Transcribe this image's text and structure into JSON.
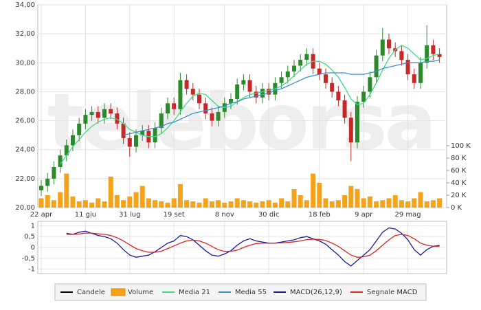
{
  "chart_data": {
    "type": "candlestick",
    "watermark": "teleborsa",
    "categories": [
      "22 apr",
      null,
      null,
      null,
      null,
      null,
      null,
      "11 giu",
      null,
      null,
      null,
      null,
      null,
      null,
      "31 lug",
      null,
      null,
      null,
      null,
      null,
      null,
      "19 set",
      null,
      null,
      null,
      null,
      null,
      null,
      null,
      "8 nov",
      null,
      null,
      null,
      null,
      null,
      null,
      "30 dic",
      null,
      null,
      null,
      null,
      null,
      null,
      null,
      "18 feb",
      null,
      null,
      null,
      null,
      null,
      null,
      "9 apr",
      null,
      null,
      null,
      null,
      null,
      null,
      "29 mag",
      null,
      null,
      null,
      null,
      null
    ],
    "ylim": [
      20,
      34
    ],
    "yticks": [
      {
        "value": 20,
        "label": "20,00"
      },
      {
        "value": 22,
        "label": "22,00"
      },
      {
        "value": 24,
        "label": "24,00"
      },
      {
        "value": 26,
        "label": "26,00"
      },
      {
        "value": 28,
        "label": "28,00"
      },
      {
        "value": 30,
        "label": "30,00"
      },
      {
        "value": 32,
        "label": "32,00"
      },
      {
        "value": 34,
        "label": "34,00"
      }
    ],
    "y2lim": [
      0,
      100
    ],
    "y2ticks": [
      {
        "value": 0,
        "label": "0 K"
      },
      {
        "value": 20,
        "label": "20 K"
      },
      {
        "value": 40,
        "label": "40 K"
      },
      {
        "value": 60,
        "label": "60 K"
      },
      {
        "value": 80,
        "label": "80 K"
      },
      {
        "value": 100,
        "label": "100 K"
      }
    ],
    "macd_ylim": [
      -1.2,
      1.2
    ],
    "macd_ticks": [
      1,
      {
        "value": 0.5,
        "label": "0,5"
      },
      0,
      {
        "value": -0.5,
        "label": "-0,5"
      },
      -1
    ],
    "grid": true,
    "series": [
      {
        "name": "Candele",
        "color": "#000000",
        "up_color": "#2b8a2b",
        "down_color": "#c62828",
        "open": [
          21.2,
          21.5,
          22.0,
          22.8,
          23.6,
          24.3,
          25.0,
          25.8,
          26.4,
          26.6,
          26.2,
          26.8,
          26.5,
          25.8,
          24.8,
          24.2,
          25.0,
          25.3,
          24.5,
          25.5,
          26.5,
          27.2,
          26.8,
          28.8,
          28.2,
          27.8,
          27.2,
          26.5,
          26.0,
          26.6,
          27.2,
          27.5,
          28.5,
          28.8,
          28.0,
          27.6,
          28.2,
          27.8,
          28.6,
          29.0,
          29.4,
          29.8,
          30.2,
          30.6,
          29.6,
          29.2,
          28.6,
          28.0,
          27.4,
          26.2,
          24.5,
          27.3,
          28.0,
          29.0,
          30.5,
          31.6,
          31.0,
          30.8,
          30.2,
          29.2,
          28.6,
          30.0,
          31.2,
          30.6
        ],
        "high": [
          21.9,
          22.4,
          23.2,
          24.0,
          24.7,
          25.4,
          26.2,
          26.8,
          27.0,
          27.0,
          27.2,
          27.2,
          26.9,
          26.2,
          25.2,
          25.4,
          25.7,
          25.7,
          25.9,
          26.9,
          27.6,
          27.6,
          29.3,
          29.2,
          28.6,
          28.2,
          27.6,
          26.9,
          27.0,
          27.6,
          27.9,
          28.9,
          29.2,
          29.2,
          28.4,
          28.6,
          28.6,
          29.0,
          29.4,
          29.8,
          30.2,
          30.6,
          31.0,
          31.0,
          30.0,
          29.6,
          29.0,
          28.4,
          27.8,
          26.6,
          27.7,
          28.4,
          29.4,
          30.9,
          32.4,
          32.0,
          31.4,
          31.2,
          30.6,
          29.6,
          30.4,
          32.6,
          31.6,
          31.0
        ],
        "low": [
          20.8,
          21.1,
          21.6,
          22.4,
          23.2,
          23.9,
          24.6,
          25.4,
          26.0,
          25.8,
          25.8,
          26.1,
          25.4,
          24.4,
          23.5,
          23.8,
          24.6,
          24.1,
          24.1,
          25.1,
          26.1,
          26.4,
          26.4,
          27.8,
          27.4,
          26.8,
          26.1,
          25.6,
          25.6,
          26.2,
          26.8,
          27.1,
          28.1,
          27.6,
          27.2,
          27.2,
          27.4,
          27.4,
          28.2,
          28.6,
          29.0,
          29.4,
          29.8,
          29.2,
          28.8,
          28.2,
          27.6,
          27.0,
          25.8,
          23.2,
          24.1,
          26.9,
          27.6,
          28.6,
          30.1,
          30.6,
          30.4,
          29.8,
          28.8,
          28.2,
          28.2,
          29.6,
          30.2,
          30.0
        ],
        "close": [
          21.5,
          22.0,
          22.8,
          23.6,
          24.3,
          25.0,
          25.8,
          26.4,
          26.6,
          26.2,
          26.8,
          26.5,
          25.8,
          24.8,
          24.2,
          25.0,
          25.3,
          24.5,
          25.5,
          26.5,
          27.2,
          26.8,
          28.8,
          28.2,
          27.8,
          27.2,
          26.5,
          26.0,
          26.6,
          27.2,
          27.5,
          28.5,
          28.8,
          28.0,
          27.6,
          28.2,
          27.8,
          28.6,
          29.0,
          29.4,
          29.8,
          30.2,
          30.6,
          29.6,
          29.2,
          28.6,
          28.0,
          27.4,
          26.2,
          24.5,
          27.3,
          28.0,
          29.0,
          30.5,
          31.6,
          31.0,
          30.8,
          30.2,
          29.2,
          28.6,
          30.0,
          31.2,
          30.6,
          30.4
        ]
      },
      {
        "name": "Volume",
        "color": "#f5a31a",
        "axis": "y2",
        "values": [
          15,
          20,
          12,
          25,
          55,
          18,
          10,
          12,
          8,
          15,
          10,
          50,
          20,
          12,
          18,
          25,
          35,
          15,
          12,
          10,
          8,
          15,
          38,
          12,
          10,
          8,
          15,
          10,
          12,
          8,
          10,
          15,
          12,
          10,
          8,
          10,
          12,
          8,
          15,
          10,
          30,
          20,
          12,
          55,
          40,
          15,
          10,
          12,
          20,
          35,
          30,
          15,
          18,
          10,
          12,
          15,
          20,
          12,
          10,
          15,
          25,
          10,
          12,
          15
        ]
      },
      {
        "name": "Media 21",
        "color": "#3ddc84",
        "values": [
          null,
          null,
          null,
          23.0,
          23.6,
          24.2,
          24.7,
          25.2,
          25.6,
          25.9,
          26.1,
          26.2,
          26.1,
          25.8,
          25.4,
          25.2,
          25.0,
          24.9,
          24.9,
          25.1,
          25.5,
          26.0,
          26.6,
          27.2,
          27.7,
          27.9,
          27.8,
          27.4,
          27.0,
          26.9,
          27.0,
          27.3,
          27.6,
          27.8,
          27.9,
          28.0,
          28.1,
          28.2,
          28.4,
          28.7,
          29.1,
          29.5,
          29.9,
          30.1,
          30.1,
          29.9,
          29.5,
          29.0,
          28.3,
          27.5,
          27.1,
          27.2,
          27.8,
          28.6,
          29.5,
          30.3,
          30.9,
          31.2,
          31.0,
          30.6,
          30.2,
          30.3,
          30.5,
          30.6
        ]
      },
      {
        "name": "Media 55",
        "color": "#3a8fd8",
        "values": [
          null,
          null,
          null,
          null,
          null,
          null,
          null,
          null,
          null,
          null,
          null,
          null,
          null,
          25.0,
          25.1,
          25.2,
          25.3,
          25.4,
          25.5,
          25.6,
          25.8,
          25.9,
          26.1,
          26.3,
          26.5,
          26.6,
          26.7,
          26.8,
          26.9,
          27.0,
          27.2,
          27.3,
          27.5,
          27.6,
          27.7,
          27.8,
          27.9,
          28.1,
          28.2,
          28.4,
          28.6,
          28.8,
          29.0,
          29.1,
          29.2,
          29.3,
          29.3,
          29.3,
          29.3,
          29.2,
          29.2,
          29.2,
          29.3,
          29.4,
          29.6,
          29.7,
          29.8,
          29.9,
          30.0,
          30.0,
          30.0,
          30.1,
          30.1,
          30.2
        ]
      },
      {
        "name": "MACD(26,12,9)",
        "color": "#1a1a99",
        "axis": "macd",
        "values": [
          null,
          null,
          null,
          null,
          0.65,
          0.6,
          0.7,
          0.75,
          0.65,
          0.55,
          0.5,
          0.4,
          0.2,
          -0.1,
          -0.35,
          -0.45,
          -0.4,
          -0.35,
          -0.2,
          0.0,
          0.2,
          0.3,
          0.55,
          0.5,
          0.35,
          0.1,
          -0.15,
          -0.35,
          -0.4,
          -0.3,
          -0.15,
          0.1,
          0.3,
          0.4,
          0.3,
          0.25,
          0.2,
          0.2,
          0.25,
          0.3,
          0.35,
          0.45,
          0.5,
          0.4,
          0.3,
          0.15,
          -0.1,
          -0.35,
          -0.65,
          -0.85,
          -0.6,
          -0.35,
          -0.1,
          0.3,
          0.7,
          0.9,
          0.85,
          0.65,
          0.35,
          -0.1,
          -0.35,
          -0.1,
          0.05,
          0.1
        ]
      },
      {
        "name": "Segnale MACD",
        "color": "#dd2222",
        "axis": "macd",
        "values": [
          null,
          null,
          null,
          null,
          0.6,
          0.6,
          0.62,
          0.66,
          0.66,
          0.63,
          0.6,
          0.55,
          0.45,
          0.3,
          0.12,
          -0.05,
          -0.15,
          -0.22,
          -0.22,
          -0.17,
          -0.05,
          0.07,
          0.2,
          0.3,
          0.34,
          0.3,
          0.2,
          0.05,
          -0.1,
          -0.18,
          -0.18,
          -0.12,
          0.0,
          0.1,
          0.18,
          0.2,
          0.2,
          0.2,
          0.21,
          0.23,
          0.26,
          0.3,
          0.36,
          0.38,
          0.37,
          0.32,
          0.2,
          0.05,
          -0.15,
          -0.35,
          -0.45,
          -0.43,
          -0.35,
          -0.15,
          0.1,
          0.35,
          0.55,
          0.6,
          0.55,
          0.4,
          0.2,
          0.1,
          0.06,
          0.05
        ]
      }
    ]
  }
}
